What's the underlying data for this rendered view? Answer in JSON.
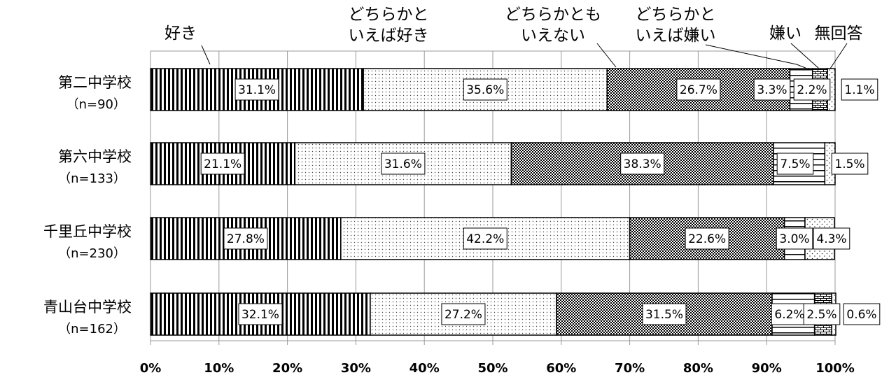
{
  "chart_data": {
    "type": "bar",
    "orientation": "horizontal",
    "stacked": "percent",
    "categories": [
      {
        "name": "第二中学校",
        "n": "（n=90）"
      },
      {
        "name": "第六中学校",
        "n": "（n=133）"
      },
      {
        "name": "千里丘中学校",
        "n": "（n=230）"
      },
      {
        "name": "青山台中学校",
        "n": "（n=162）"
      }
    ],
    "series": [
      {
        "name": "好き",
        "pattern": "vertical-stripes",
        "values": [
          31.1,
          21.1,
          27.8,
          32.1
        ]
      },
      {
        "name": "どちらかといえば好き",
        "name_lines": [
          "どちらかと",
          "いえば好き"
        ],
        "pattern": "dots",
        "values": [
          35.6,
          31.6,
          42.2,
          27.2
        ]
      },
      {
        "name": "どちらかともいえない",
        "name_lines": [
          "どちらかとも",
          "いえない"
        ],
        "pattern": "checker",
        "values": [
          26.7,
          38.3,
          22.6,
          31.5
        ]
      },
      {
        "name": "どちらかといえば嫌い",
        "name_lines": [
          "どちらかと",
          "いえば嫌い"
        ],
        "pattern": "horizontal-lines",
        "values": [
          3.3,
          7.5,
          3.0,
          6.2
        ]
      },
      {
        "name": "嫌い",
        "pattern": "bricks",
        "values": [
          2.2,
          0.0,
          0.0,
          2.5
        ]
      },
      {
        "name": "無回答",
        "pattern": "sparse-dots",
        "values": [
          1.1,
          1.5,
          4.3,
          0.6
        ]
      }
    ],
    "data_labels": [
      [
        "31.1%",
        "35.6%",
        "26.7%",
        "3.3%",
        "2.2%",
        "1.1%"
      ],
      [
        "21.1%",
        "31.6%",
        "38.3%",
        "7.5%",
        "",
        "1.5%"
      ],
      [
        "27.8%",
        "42.2%",
        "22.6%",
        "3.0%",
        "",
        "4.3%"
      ],
      [
        "32.1%",
        "27.2%",
        "31.5%",
        "6.2%",
        "2.5%",
        "0.6%"
      ]
    ],
    "x_ticks": [
      "0%",
      "10%",
      "20%",
      "30%",
      "40%",
      "50%",
      "60%",
      "70%",
      "80%",
      "90%",
      "100%"
    ],
    "xlim": [
      0,
      100
    ],
    "grid": true,
    "legend": "top, labels with leader lines",
    "colors": {
      "bar_fill": "#ffffff",
      "pattern": "#000000",
      "grid": "#999999",
      "axis": "#999999"
    }
  }
}
